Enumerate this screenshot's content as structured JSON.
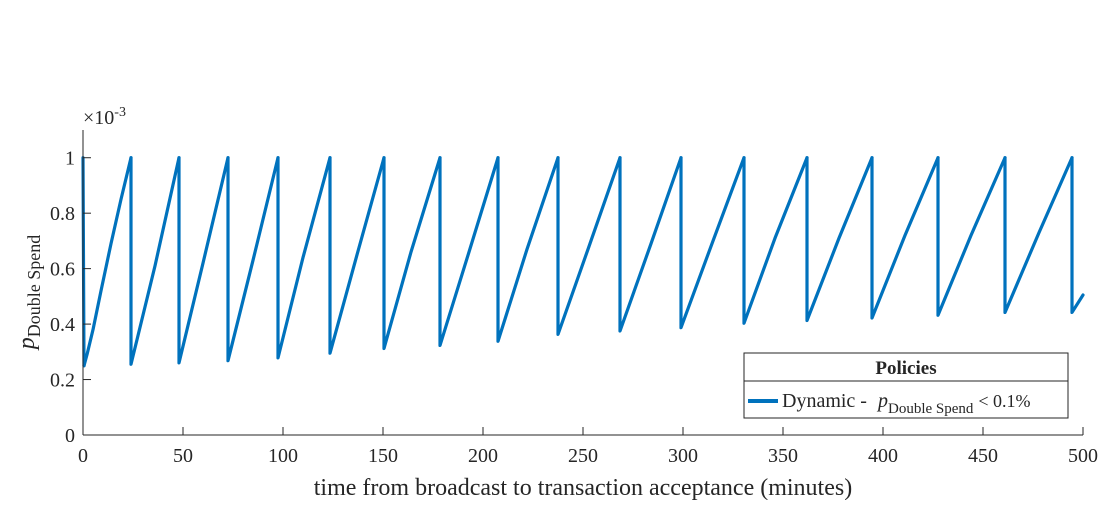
{
  "chart_data": {
    "type": "line",
    "title": "",
    "xlabel": "time from broadcast to transaction acceptance (minutes)",
    "ylabel": {
      "var": "p",
      "sub": "Double Spend"
    },
    "xlim": [
      0,
      500
    ],
    "ylim": [
      0,
      0.0011
    ],
    "y_exponent_label": {
      "base": "×10",
      "exp": "-3"
    },
    "xticks": [
      0,
      50,
      100,
      150,
      200,
      250,
      300,
      350,
      400,
      450,
      500
    ],
    "xtick_labels": [
      "0",
      "50",
      "100",
      "150",
      "200",
      "250",
      "300",
      "350",
      "400",
      "450",
      "500"
    ],
    "yticks": [
      0,
      0.0002,
      0.0004,
      0.0006,
      0.0008,
      0.001
    ],
    "ytick_labels": [
      "0",
      "0.2",
      "0.4",
      "0.6",
      "0.8",
      "1"
    ],
    "grid": false,
    "legend": {
      "title": "Policies",
      "placement": "bottom-right",
      "entry": {
        "prefix": "Dynamic - ",
        "var": "p",
        "sub": "Double Spend",
        "suffix": "< 0.1%"
      }
    },
    "series": [
      {
        "line_color": "#0072BD",
        "segments": [
          {
            "x": [
              0,
              0.5
            ],
            "y": [
              0.001,
              0.00025
            ]
          },
          {
            "x": [
              0.5,
              2,
              5,
              9,
              14,
              19,
              24
            ],
            "y": [
              0.00025,
              0.00029,
              0.00038,
              0.00052,
              0.00069,
              0.00085,
              0.001
            ]
          },
          {
            "x": [
              24,
              24,
              36,
              48
            ],
            "y": [
              0.001,
              0.000255,
              0.00061,
              0.001
            ]
          },
          {
            "x": [
              48,
              48,
              60,
              72.5
            ],
            "y": [
              0.001,
              0.00026,
              0.00062,
              0.001
            ]
          },
          {
            "x": [
              72.5,
              72.5,
              85,
              97.5
            ],
            "y": [
              0.001,
              0.000268,
              0.00063,
              0.001
            ]
          },
          {
            "x": [
              97.5,
              97.5,
              110,
              123.5
            ],
            "y": [
              0.001,
              0.000278,
              0.00064,
              0.001
            ]
          },
          {
            "x": [
              123.5,
              123.5,
              137,
              150.5
            ],
            "y": [
              0.001,
              0.000295,
              0.00065,
              0.001
            ]
          },
          {
            "x": [
              150.5,
              150.5,
              164,
              178.5
            ],
            "y": [
              0.001,
              0.000312,
              0.00066,
              0.001
            ]
          },
          {
            "x": [
              178.5,
              178.5,
              193,
              207.5
            ],
            "y": [
              0.001,
              0.000323,
              0.00066,
              0.001
            ]
          },
          {
            "x": [
              207.5,
              207.5,
              222,
              237.5
            ],
            "y": [
              0.001,
              0.000338,
              0.00067,
              0.001
            ]
          },
          {
            "x": [
              237.5,
              237.5,
              253,
              268.5
            ],
            "y": [
              0.001,
              0.000363,
              0.00068,
              0.001
            ]
          },
          {
            "x": [
              268.5,
              268.5,
              284,
              299
            ],
            "y": [
              0.001,
              0.000375,
              0.00069,
              0.001
            ]
          },
          {
            "x": [
              299,
              299,
              315,
              330.5
            ],
            "y": [
              0.001,
              0.000387,
              0.0007,
              0.001
            ]
          },
          {
            "x": [
              330.5,
              330.5,
              346,
              362
            ],
            "y": [
              0.001,
              0.000403,
              0.00071,
              0.001
            ]
          },
          {
            "x": [
              362,
              362,
              378,
              394.5
            ],
            "y": [
              0.001,
              0.000413,
              0.00071,
              0.001
            ]
          },
          {
            "x": [
              394.5,
              394.5,
              411,
              427.5
            ],
            "y": [
              0.001,
              0.000422,
              0.00072,
              0.001
            ]
          },
          {
            "x": [
              427.5,
              427.5,
              444,
              461
            ],
            "y": [
              0.001,
              0.000432,
              0.00072,
              0.001
            ]
          },
          {
            "x": [
              461,
              461,
              478,
              494.5
            ],
            "y": [
              0.001,
              0.000442,
              0.00073,
              0.001
            ]
          },
          {
            "x": [
              494.5,
              494.5,
              500
            ],
            "y": [
              0.001,
              0.000442,
              0.000505
            ]
          }
        ]
      }
    ]
  }
}
